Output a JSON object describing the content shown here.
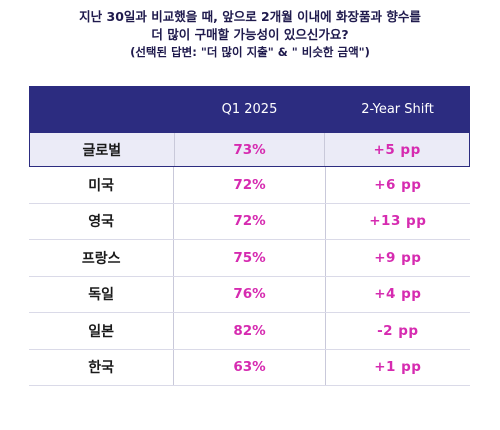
{
  "heading": {
    "line1": "지난 30일과 비교했을 때, 앞으로 2개월 이내에 화장품과 향수를",
    "line2": "더 많이 구매할 가능성이 있으신가요?",
    "line3": "(선택된 답변: \"더 많이 지출\" & \" 비슷한 금액\")"
  },
  "chart_data": {
    "type": "table",
    "columns": [
      "",
      "Q1 2025",
      "2-Year Shift"
    ],
    "rows": [
      {
        "country": "글로벌",
        "q1_2025": "73%",
        "shift": "+5 pp",
        "highlight": true
      },
      {
        "country": "미국",
        "q1_2025": "72%",
        "shift": "+6 pp"
      },
      {
        "country": "영국",
        "q1_2025": "72%",
        "shift": "+13 pp"
      },
      {
        "country": "프랑스",
        "q1_2025": "75%",
        "shift": "+9 pp"
      },
      {
        "country": "독일",
        "q1_2025": "76%",
        "shift": "+4 pp"
      },
      {
        "country": "일본",
        "q1_2025": "82%",
        "shift": "-2 pp"
      },
      {
        "country": "한국",
        "q1_2025": "63%",
        "shift": "+1 pp"
      }
    ]
  },
  "colors": {
    "header_bg": "#2c2c80",
    "highlight_bg": "#ebebf7",
    "value_color": "#d62bb0"
  }
}
